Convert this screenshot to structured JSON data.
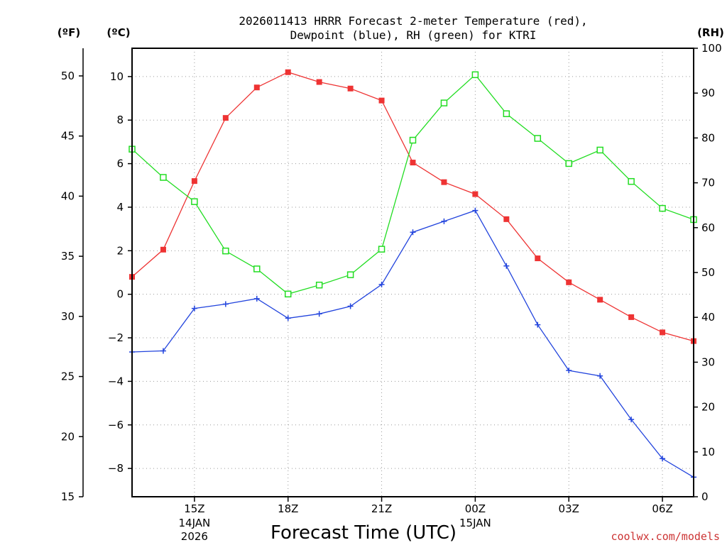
{
  "chart_data": {
    "type": "line",
    "title_lines": [
      "2026011413 HRRR Forecast 2-meter Temperature (red),",
      "Dewpoint (blue), RH (green) for KTRI"
    ],
    "xlabel": "Forecast Time (UTC)",
    "units": {
      "left_outer": "(ºF)",
      "left_inner": "(ºC)",
      "right": "(RH)"
    },
    "x_hours": [
      13,
      14,
      15,
      16,
      17,
      18,
      19,
      20,
      21,
      22,
      23,
      24,
      25,
      26,
      27,
      28,
      29,
      30,
      31
    ],
    "xlim": [
      13,
      31
    ],
    "x_ticks": [
      {
        "hour": 15,
        "label": "15Z",
        "sub": [
          "14JAN",
          "2026"
        ]
      },
      {
        "hour": 18,
        "label": "18Z",
        "sub": []
      },
      {
        "hour": 21,
        "label": "21Z",
        "sub": []
      },
      {
        "hour": 24,
        "label": "00Z",
        "sub": [
          "15JAN"
        ]
      },
      {
        "hour": 27,
        "label": "03Z",
        "sub": []
      },
      {
        "hour": 30,
        "label": "06Z",
        "sub": []
      }
    ],
    "y_celsius": {
      "ylim": [
        -9.3,
        11.3
      ],
      "ticks": [
        10,
        8,
        6,
        4,
        2,
        0,
        -2,
        -4,
        -6,
        -8
      ],
      "labels": [
        "10",
        "8",
        "6",
        "4",
        "2",
        "0",
        "−2",
        "−4",
        "−6",
        "−8"
      ]
    },
    "y_fahrenheit": {
      "ylim": [
        15,
        52.3
      ],
      "ticks": [
        50,
        45,
        40,
        35,
        30,
        25,
        20,
        15
      ],
      "labels": [
        "50",
        "45",
        "40",
        "35",
        "30",
        "25",
        "20",
        "15"
      ]
    },
    "y_rh": {
      "ylim": [
        0,
        100
      ],
      "ticks": [
        100,
        90,
        80,
        70,
        60,
        50,
        40,
        30,
        20,
        10,
        0
      ],
      "labels": [
        "100",
        "90",
        "80",
        "70",
        "60",
        "50",
        "40",
        "30",
        "20",
        "10",
        "0"
      ]
    },
    "series": [
      {
        "name": "2-meter Temperature",
        "units": "°C",
        "color": "#ee3333",
        "marker": "filled-square",
        "values": [
          0.8,
          2.05,
          5.2,
          8.1,
          9.5,
          10.2,
          9.75,
          9.45,
          8.9,
          6.05,
          5.15,
          4.6,
          3.45,
          1.65,
          0.55,
          -0.25,
          -1.05,
          -1.75,
          -2.15
        ]
      },
      {
        "name": "Dewpoint",
        "units": "°C",
        "color": "#2244dd",
        "marker": "plus",
        "values": [
          -2.65,
          -2.6,
          -0.65,
          -0.45,
          -0.2,
          -1.1,
          -0.9,
          -0.55,
          0.45,
          2.85,
          3.35,
          3.85,
          1.3,
          -1.4,
          -3.5,
          -3.75,
          -5.75,
          -7.55,
          -8.4
        ]
      },
      {
        "name": "Relative Humidity",
        "units": "%",
        "color": "#22dd22",
        "marker": "open-square",
        "values": [
          77.5,
          71.2,
          65.8,
          54.8,
          50.8,
          45.2,
          47.2,
          49.5,
          55.2,
          79.5,
          87.8,
          94.1,
          85.4,
          79.9,
          74.3,
          77.3,
          70.3,
          64.3,
          61.8
        ]
      }
    ]
  },
  "watermark": {
    "text": "coolwx.com/models",
    "color": "#cc3333"
  }
}
